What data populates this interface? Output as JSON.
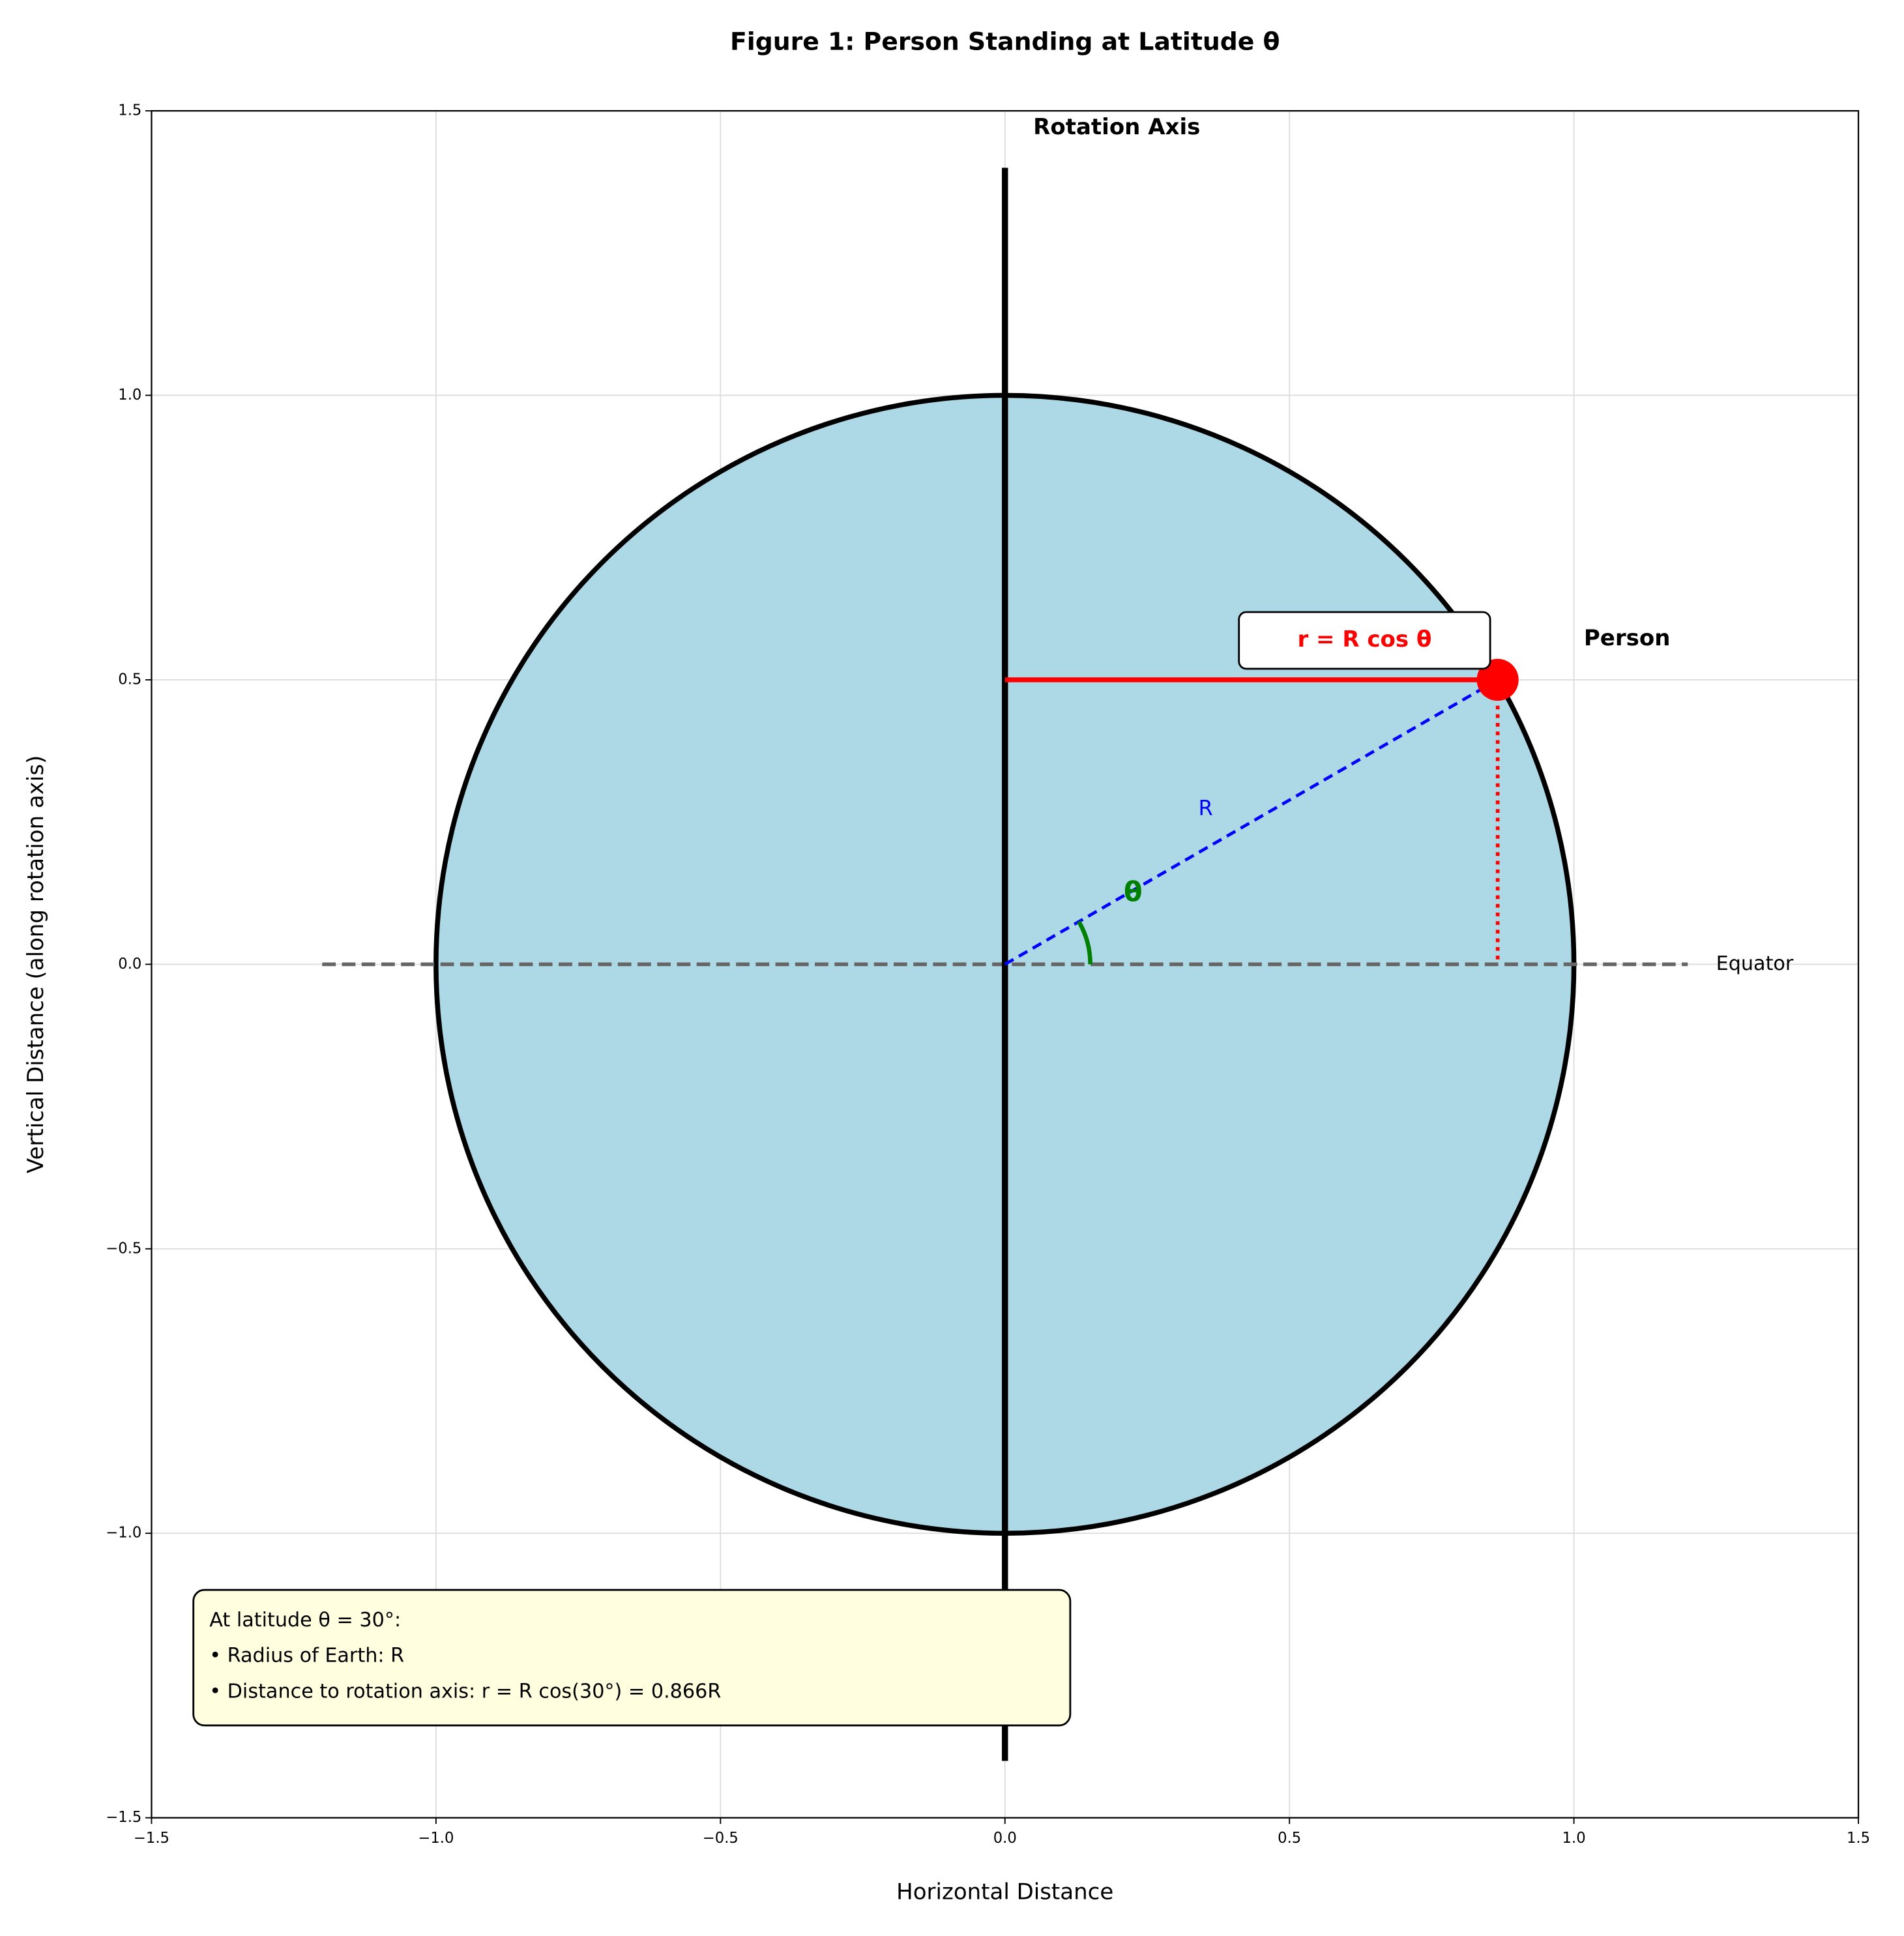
{
  "chart_data": {
    "type": "geometry",
    "title": "Figure 1: Person Standing at Latitude θ",
    "x_label": "Horizontal Distance",
    "y_label": "Vertical Distance (along rotation axis)",
    "xlim": [
      -1.5,
      1.5
    ],
    "ylim": [
      -1.5,
      1.5
    ],
    "xticks": [
      {
        "value": -1.5,
        "label": "−1.5"
      },
      {
        "value": -1.0,
        "label": "−1.0"
      },
      {
        "value": -0.5,
        "label": "−0.5"
      },
      {
        "value": 0,
        "label": "0.0"
      },
      0.5,
      {
        "value": 1.0,
        "label": "1.0"
      },
      1.5
    ],
    "yticks": [
      {
        "value": -1.5,
        "label": "−1.5"
      },
      {
        "value": -1.0,
        "label": "−1.0"
      },
      {
        "value": -0.5,
        "label": "−0.5"
      },
      {
        "value": 0,
        "label": "0.0"
      },
      0.5,
      {
        "value": 1.0,
        "label": "1.0"
      },
      1.5
    ],
    "grid": true,
    "earth": {
      "radius": 1,
      "color": "#add8e6"
    },
    "rotation_axis": {
      "label": "Rotation Axis",
      "extent": [
        -1.4,
        1.4
      ]
    },
    "equator": {
      "label": "Equator",
      "extent": [
        -1.2,
        1.2
      ]
    },
    "person": {
      "label": "Person",
      "x": 0.866,
      "y": 0.5,
      "color": "red"
    },
    "latitude_deg": 30,
    "angle_label": "θ",
    "radius_label": "R",
    "distance_label": "r = R cos θ",
    "info_box": [
      "At latitude θ = 30°:",
      "• Radius of Earth: R",
      "• Distance to rotation axis: r = R cos(30°) = 0.866R"
    ]
  }
}
